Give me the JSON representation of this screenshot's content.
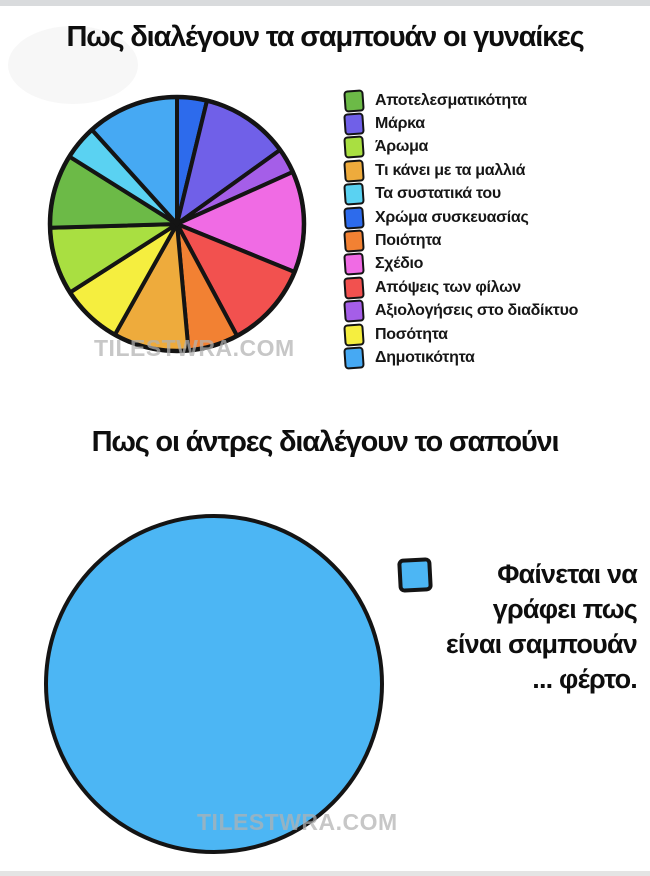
{
  "watermark": "TILESTWRA.COM",
  "chart_data": [
    {
      "type": "pie",
      "title": "Πως διαλέγουν τα σαμπουάν οι γυναίκες",
      "legend_position": "right",
      "slices": [
        {
          "label": "Αποτελεσματικότητα",
          "color": "#6cba47",
          "percent": 9.4
        },
        {
          "label": "Μάρκα",
          "color": "#7060e8",
          "percent": 11.3
        },
        {
          "label": "Άρωμα",
          "color": "#a9df41",
          "percent": 8.6
        },
        {
          "label": "Τι κάνει με τα μαλλιά",
          "color": "#eeab3c",
          "percent": 9.6
        },
        {
          "label": "Τα συστατικά του",
          "color": "#5ad2f2",
          "percent": 4.4
        },
        {
          "label": "Χρώμα συσκευασίας",
          "color": "#2d6bec",
          "percent": 3.8
        },
        {
          "label": "Ποιότητα",
          "color": "#f28133",
          "percent": 6.4
        },
        {
          "label": "Σχέδιο",
          "color": "#f06be4",
          "percent": 12.9
        },
        {
          "label": "Απόψεις των φίλων",
          "color": "#f2514f",
          "percent": 11.0
        },
        {
          "label": "Αξιολογήσεις στο διαδίκτυο",
          "color": "#a55ee8",
          "percent": 3.2
        },
        {
          "label": "Ποσότητα",
          "color": "#f5ee3f",
          "percent": 7.8
        },
        {
          "label": "Δημοτικότητα",
          "color": "#46a9f3",
          "percent": 11.7
        }
      ],
      "draw_order": [
        5,
        1,
        9,
        7,
        8,
        6,
        3,
        10,
        2,
        0,
        4,
        11
      ],
      "start_angle_deg": 0
    },
    {
      "type": "pie",
      "title": "Πως οι άντρες διαλέγουν το σαπούνι",
      "legend_position": "right",
      "slices": [
        {
          "label": "Φαίνεται να γράφει πως είναι σαμπουάν ... φέρτο.",
          "label_lines": [
            "Φαίνεται να",
            "γράφει πως",
            "είναι σαμπουάν",
            "... φέρτο."
          ],
          "color": "#4cb6f4",
          "percent": 100
        }
      ]
    }
  ]
}
